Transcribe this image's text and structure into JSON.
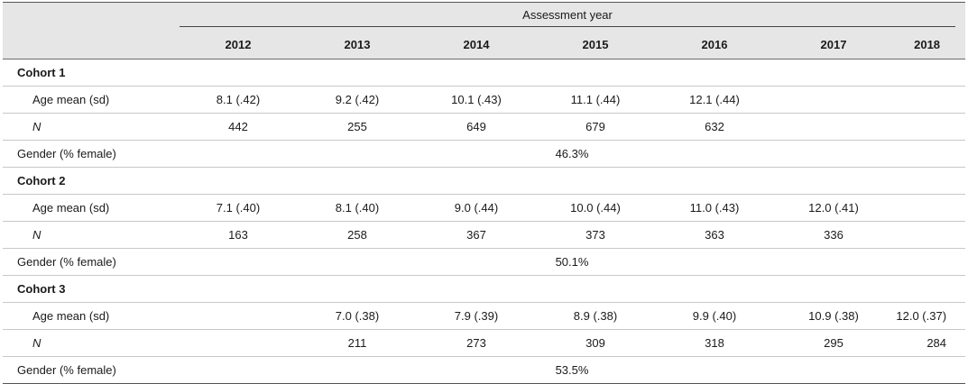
{
  "header": {
    "group_label": "Assessment year",
    "years": [
      "2012",
      "2013",
      "2014",
      "2015",
      "2016",
      "2017",
      "2018"
    ]
  },
  "cohorts": [
    {
      "name": "Cohort 1",
      "age_label": "Age mean (sd)",
      "age": [
        "8.1 (.42)",
        "9.2 (.42)",
        "10.1 (.43)",
        "11.1 (.44)",
        "12.1 (.44)",
        "",
        ""
      ],
      "n_label": "N",
      "n": [
        "442",
        "255",
        "649",
        "679",
        "632",
        "",
        ""
      ],
      "gender_label": "Gender (% female)",
      "gender": "46.3%"
    },
    {
      "name": "Cohort 2",
      "age_label": "Age mean (sd)",
      "age": [
        "7.1 (.40)",
        "8.1 (.40)",
        "9.0 (.44)",
        "10.0 (.44)",
        "11.0 (.43)",
        "12.0 (.41)",
        ""
      ],
      "n_label": "N",
      "n": [
        "163",
        "258",
        "367",
        "373",
        "363",
        "336",
        ""
      ],
      "gender_label": "Gender (% female)",
      "gender": "50.1%"
    },
    {
      "name": "Cohort 3",
      "age_label": "Age mean (sd)",
      "age": [
        "",
        "7.0 (.38)",
        "7.9 (.39)",
        "8.9 (.38)",
        "9.9 (.40)",
        "10.9 (.38)",
        "12.0 (.37)"
      ],
      "n_label": "N",
      "n": [
        "",
        "211",
        "273",
        "309",
        "318",
        "295",
        "284"
      ],
      "gender_label": "Gender (% female)",
      "gender": "53.5%"
    }
  ]
}
